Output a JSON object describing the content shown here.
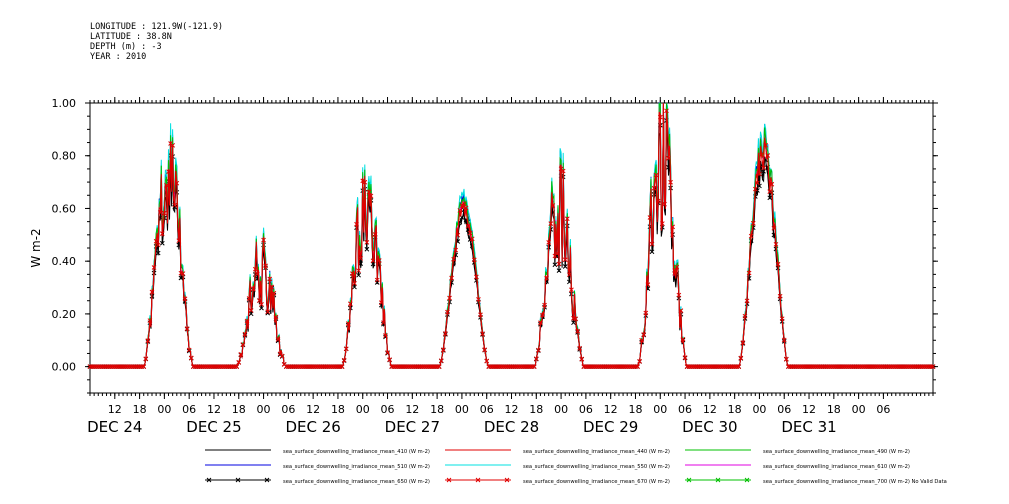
{
  "header": {
    "longitude": "LONGITUDE : 121.9W(-121.9)",
    "latitude": "LATITUDE : 38.8N",
    "depth": "DEPTH (m) : -3",
    "year": "YEAR : 2010"
  },
  "chart_data": {
    "type": "line",
    "ylabel": "W m-2",
    "ylim": [
      -0.1,
      1.0
    ],
    "yticks": [
      "0.00",
      "0.20",
      "0.40",
      "0.60",
      "0.80",
      "1.00"
    ],
    "ytick_values": [
      0.0,
      0.2,
      0.4,
      0.6,
      0.8,
      1.0
    ],
    "xlim_hours": [
      0,
      204
    ],
    "x_start": "DEC 24 06:00",
    "x_hour_labels": [
      "12",
      "18",
      "00",
      "06",
      "12",
      "18",
      "00",
      "06",
      "12",
      "18",
      "00",
      "06",
      "12",
      "18",
      "00",
      "06",
      "12",
      "18",
      "00",
      "06",
      "12",
      "18",
      "00",
      "06",
      "12",
      "18",
      "00",
      "06",
      "12",
      "18",
      "00",
      "06"
    ],
    "x_day_labels": [
      "DEC 24",
      "DEC 25",
      "DEC 26",
      "DEC 27",
      "DEC 28",
      "DEC 29",
      "DEC 30",
      "DEC 31"
    ],
    "grid": false,
    "legend_position": "bottom",
    "days": [
      {
        "day": "DEC 24",
        "peak_hour": 19,
        "peak": 0.78,
        "noise": 0.25
      },
      {
        "day": "DEC 25",
        "peak_hour": 17.5,
        "peak": 0.4,
        "noise": 0.4
      },
      {
        "day": "DEC 26",
        "peak_hour": 19,
        "peak": 0.68,
        "noise": 0.28
      },
      {
        "day": "DEC 27",
        "peak_hour": 18.5,
        "peak": 0.64,
        "noise": 0.05
      },
      {
        "day": "DEC 28",
        "peak_hour": 17.5,
        "peak": 0.64,
        "noise": 0.35
      },
      {
        "day": "DEC 29",
        "peak_hour": 18.5,
        "peak": 0.87,
        "noise": 0.35
      },
      {
        "day": "DEC 30",
        "peak_hour": 19,
        "peak": 0.89,
        "noise": 0.08
      }
    ],
    "series": [
      {
        "name": "sea_surface_downwelling_irradiance_mean_410 (W m-2)",
        "color": "#000000",
        "scale": 0.86,
        "marker": "none"
      },
      {
        "name": "sea_surface_downwelling_irradiance_mean_440 (W m-2)",
        "color": "#e00000",
        "scale": 0.93,
        "marker": "none"
      },
      {
        "name": "sea_surface_downwelling_irradiance_mean_490 (W m-2)",
        "color": "#00c000",
        "scale": 0.97,
        "marker": "none"
      },
      {
        "name": "sea_surface_downwelling_irradiance_mean_510 (W m-2)",
        "color": "#0000e0",
        "scale": 0.98,
        "marker": "none"
      },
      {
        "name": "sea_surface_downwelling_irradiance_mean_550 (W m-2)",
        "color": "#00e0e0",
        "scale": 1.0,
        "marker": "none"
      },
      {
        "name": "sea_surface_downwelling_irradiance_mean_610 (W m-2)",
        "color": "#e000e0",
        "scale": 0.95,
        "marker": "none"
      },
      {
        "name": "sea_surface_downwelling_irradiance_mean_650 (W m-2)",
        "color": "#000000",
        "scale": 0.88,
        "marker": "x"
      },
      {
        "name": "sea_surface_downwelling_irradiance_mean_670 (W m-2)",
        "color": "#e00000",
        "scale": 0.92,
        "marker": "x"
      },
      {
        "name": "sea_surface_downwelling_irradiance_mean_700 (W m-2) No Valid Data",
        "color": "#00c000",
        "scale": 0,
        "marker": "x"
      }
    ]
  }
}
